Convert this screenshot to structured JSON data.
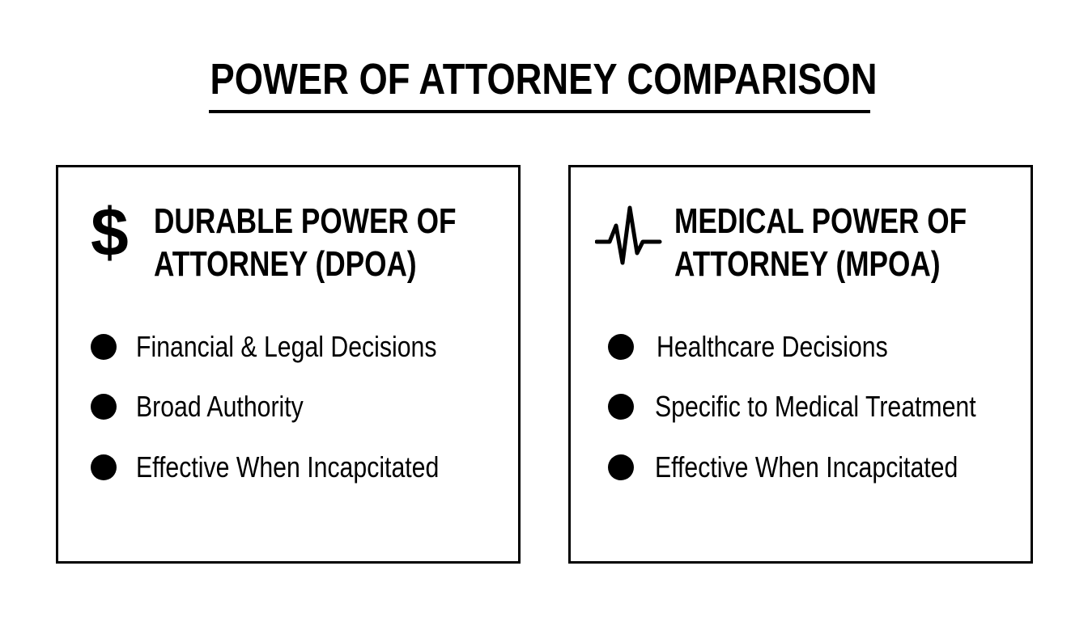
{
  "title": "POWER OF ATTORNEY COMPARISON",
  "cards": [
    {
      "icon": "dollar-sign-icon",
      "heading_line1": "DURABLE POWER OF",
      "heading_line2": "ATTORNEY (DPOA)",
      "bullets": [
        "Financial & Legal Decisions",
        "Broad Authority",
        "Effective When Incapcitated"
      ]
    },
    {
      "icon": "heartbeat-pulse-icon",
      "heading_line1": "MEDICAL POWER OF",
      "heading_line2": "ATTORNEY (MPOA)",
      "bullets": [
        "Healthcare Decisions",
        "Specific to Medical Treatment",
        "Effective When Incapcitated"
      ]
    }
  ],
  "icon_glyphs": {
    "dollar": "$"
  },
  "colors": {
    "text": "#000000",
    "background": "#ffffff"
  }
}
